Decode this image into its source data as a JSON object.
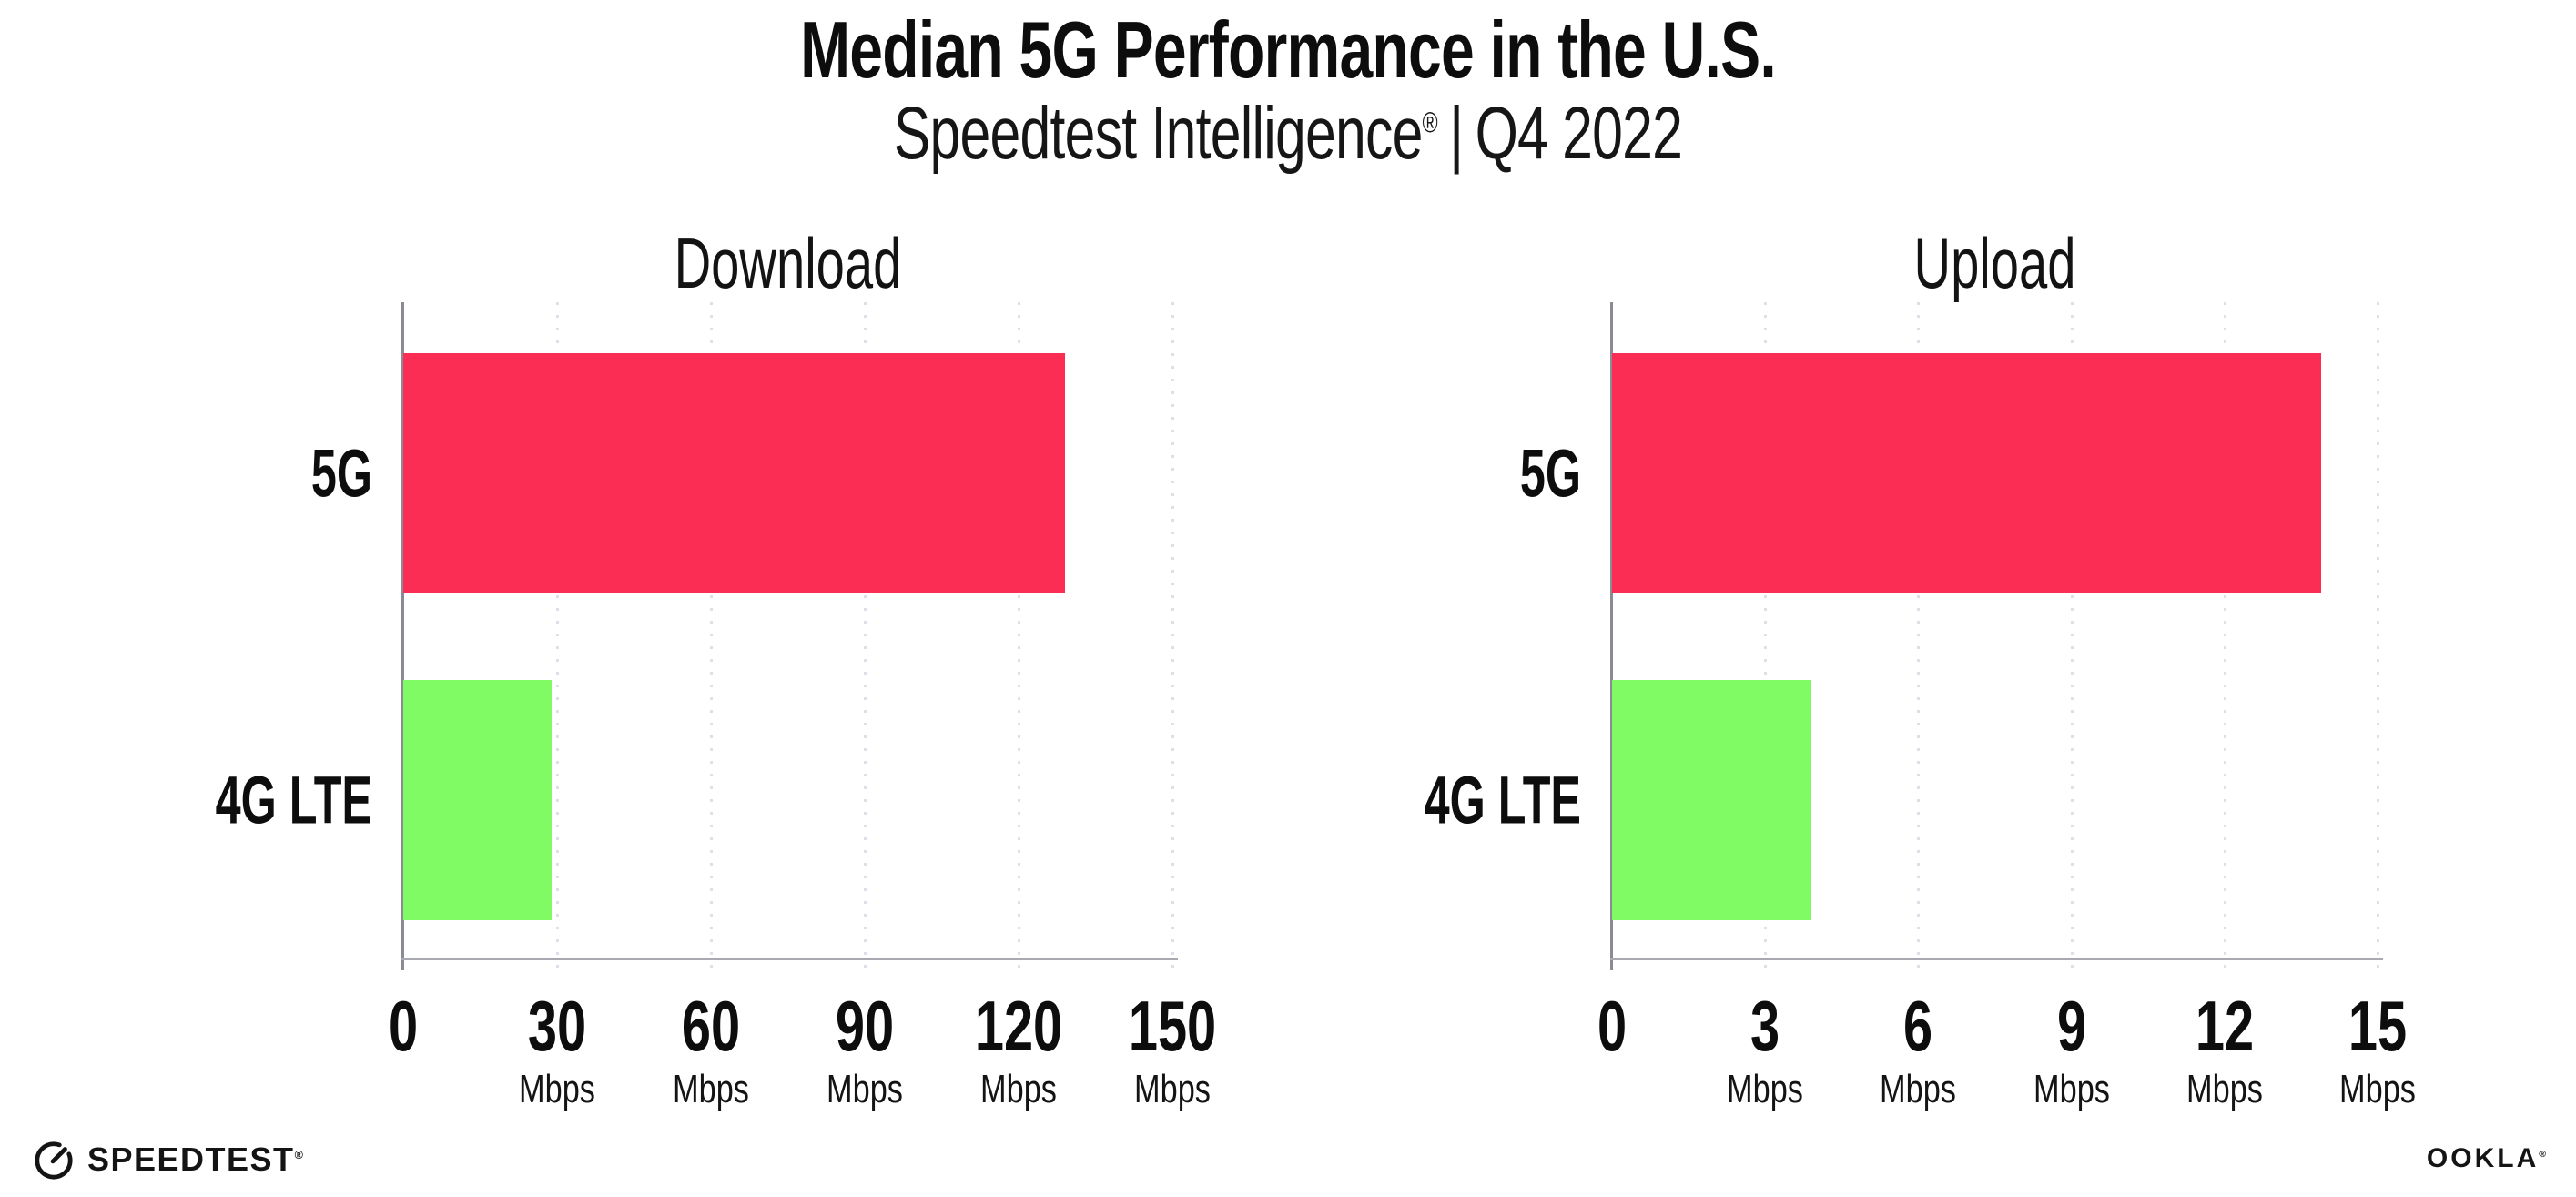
{
  "header": {
    "title": "Median 5G Performance in the U.S.",
    "subtitle_brand": "Speedtest Intelligence",
    "subtitle_reg": "®",
    "subtitle_divider": "|",
    "subtitle_period": "Q4 2022"
  },
  "colors": {
    "bar_5g": "#fc2d55",
    "bar_4g_lte": "#80fb63",
    "axis": "#a9a9b1",
    "y_axis": "#8b8b93",
    "gridline": "#dfdfe9",
    "text": "#0d0d0d"
  },
  "chart_data": [
    {
      "type": "bar",
      "orientation": "horizontal",
      "title": "Download",
      "categories": [
        "5G",
        "4G LTE"
      ],
      "values": [
        129,
        29
      ],
      "unit": "Mbps",
      "xlim": [
        0,
        150
      ],
      "xticks": [
        0,
        30,
        60,
        90,
        120,
        150
      ],
      "bar_colors": [
        "#fc2d55",
        "#80fb63"
      ],
      "grid": "dotted-vertical",
      "legend": "none"
    },
    {
      "type": "bar",
      "orientation": "horizontal",
      "title": "Upload",
      "categories": [
        "5G",
        "4G LTE"
      ],
      "values": [
        13.9,
        3.9
      ],
      "unit": "Mbps",
      "xlim": [
        0,
        15
      ],
      "xticks": [
        0,
        3,
        6,
        9,
        12,
        15
      ],
      "bar_colors": [
        "#fc2d55",
        "#80fb63"
      ],
      "grid": "dotted-vertical",
      "legend": "none"
    }
  ],
  "footer": {
    "speedtest_label": "SPEEDTEST",
    "speedtest_reg": "®",
    "ookla_label": "OOKLA",
    "ookla_reg": "®"
  }
}
